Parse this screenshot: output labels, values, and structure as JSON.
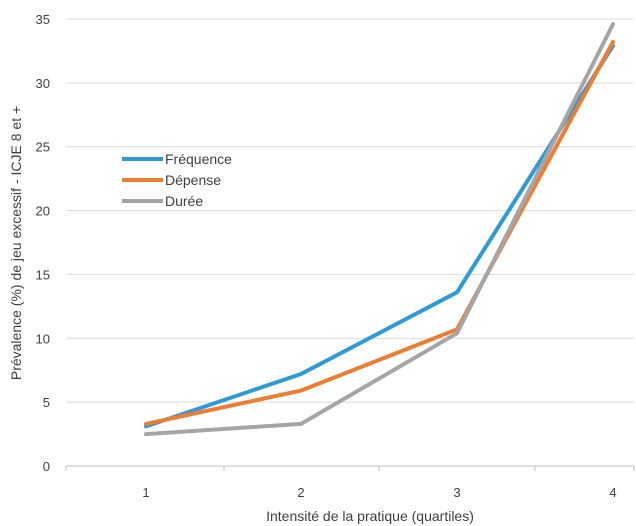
{
  "chart_data": {
    "type": "line",
    "x": [
      1,
      2,
      3,
      4
    ],
    "categories": [
      "1",
      "2",
      "3",
      "4"
    ],
    "xlabel": "Intensité de la pratique (quartiles)",
    "ylabel": "Prévalence (%) de jeu excessif - ICJE 8 et +",
    "ylim": [
      0,
      35
    ],
    "yticks": [
      0,
      5,
      10,
      15,
      20,
      25,
      30,
      35
    ],
    "grid": true,
    "legend_position": "left",
    "series": [
      {
        "name": "Fréquence",
        "color": "#2E9BD6",
        "values": [
          3.1,
          7.2,
          13.6,
          32.9
        ]
      },
      {
        "name": "Dépense",
        "color": "#ED7D31",
        "values": [
          3.3,
          5.9,
          10.7,
          33.2
        ]
      },
      {
        "name": "Durée",
        "color": "#A5A5A5",
        "values": [
          2.5,
          3.3,
          10.4,
          34.6
        ]
      }
    ]
  }
}
